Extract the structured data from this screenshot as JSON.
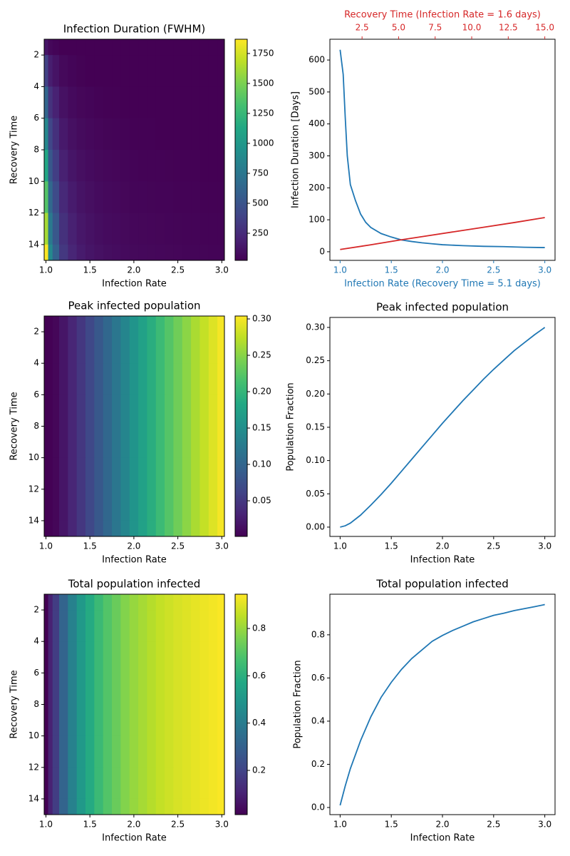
{
  "chart_data": [
    {
      "type": "heatmap",
      "title": "Infection Duration (FWHM)",
      "xlabel": "Infection Rate",
      "ylabel": "Recovery Time",
      "colormap": "viridis",
      "x": [
        1.0,
        1.05,
        1.1,
        1.2,
        1.3,
        1.4,
        1.5,
        1.6,
        1.7,
        1.8,
        1.9,
        2.0,
        2.1,
        2.2,
        2.3,
        2.4,
        2.5,
        2.6,
        2.7,
        2.8,
        2.9,
        3.0
      ],
      "y": [
        1,
        3,
        5,
        7,
        9,
        11,
        13,
        15
      ],
      "values": [
        [
          125,
          59,
          40,
          22,
          15,
          11,
          9,
          7,
          6,
          6,
          5,
          4,
          4,
          4,
          4,
          4,
          3,
          3,
          3,
          3,
          3,
          3
        ],
        [
          374,
          177,
          120,
          65,
          44,
          32,
          26,
          21,
          18,
          17,
          15,
          13,
          12,
          12,
          11,
          11,
          10,
          9,
          9,
          9,
          8,
          8
        ],
        [
          623,
          295,
          200,
          108,
          74,
          54,
          44,
          36,
          31,
          28,
          25,
          22,
          21,
          20,
          19,
          18,
          17,
          16,
          15,
          14,
          14,
          13
        ],
        [
          872,
          413,
          280,
          151,
          103,
          76,
          62,
          50,
          43,
          39,
          34,
          30,
          29,
          27,
          26,
          25,
          23,
          22,
          21,
          20,
          19,
          18
        ],
        [
          1121,
          531,
          360,
          194,
          132,
          97,
          79,
          64,
          55,
          50,
          44,
          39,
          37,
          35,
          33,
          32,
          30,
          28,
          27,
          26,
          24,
          23
        ],
        [
          1370,
          649,
          440,
          238,
          162,
          119,
          97,
          78,
          67,
          61,
          54,
          47,
          45,
          43,
          41,
          39,
          36,
          34,
          33,
          31,
          30,
          28
        ],
        [
          1620,
          767,
          520,
          281,
          191,
          140,
          114,
          92,
          79,
          72,
          64,
          56,
          53,
          51,
          48,
          46,
          43,
          40,
          39,
          37,
          35,
          33
        ],
        [
          1869,
          885,
          600,
          324,
          221,
          162,
          132,
          107,
          92,
          83,
          74,
          65,
          62,
          59,
          56,
          53,
          50,
          47,
          45,
          43,
          41,
          38
        ]
      ],
      "xlim": [
        0.98,
        3.03
      ],
      "xticks": [
        {
          "value": 1,
          "label": "1.0"
        },
        1.5,
        {
          "value": 2,
          "label": "2.0"
        },
        2.5,
        {
          "value": 3,
          "label": "3.0"
        }
      ],
      "ylim": [
        15,
        1
      ],
      "yticks": [
        2,
        4,
        6,
        8,
        10,
        12,
        14
      ],
      "clim": [
        24,
        1869
      ],
      "cticks": [
        250,
        500,
        750,
        1000,
        1250,
        1500,
        1750
      ]
    },
    {
      "type": "line",
      "xlabel": "Infection Rate (Recovery Time = 5.1 days)",
      "ylabel": "Infection Duration [Days]",
      "x2label": "Recovery Time (Infection Rate = 1.6 days)",
      "xaxis_color": "#1f77b4",
      "x2axis_color": "#d62728",
      "xlim": [
        0.9,
        3.1
      ],
      "xticks": [
        {
          "value": 1,
          "label": "1.0"
        },
        1.5,
        {
          "value": 2,
          "label": "2.0"
        },
        2.5,
        {
          "value": 3,
          "label": "3.0"
        }
      ],
      "x2lim": [
        0.3,
        15.7
      ],
      "x2ticks": [
        2.5,
        {
          "value": 5,
          "label": "5.0"
        },
        7.5,
        {
          "value": 10,
          "label": "10.0"
        },
        12.5,
        {
          "value": 15,
          "label": "15.0"
        }
      ],
      "ylim": [
        -27,
        665
      ],
      "yticks": [
        0,
        100,
        200,
        300,
        400,
        500,
        600
      ],
      "series": [
        {
          "color": "#1f77b4",
          "x": [
            1.0,
            1.03,
            1.05,
            1.07,
            1.1,
            1.15,
            1.2,
            1.25,
            1.3,
            1.4,
            1.5,
            1.6,
            1.7,
            1.8,
            1.9,
            2.0,
            2.2,
            2.4,
            2.6,
            2.8,
            3.0
          ],
          "values": [
            632,
            555,
            420,
            300,
            210,
            160,
            118,
            92,
            76,
            57,
            46,
            37,
            32,
            28,
            25,
            22,
            19,
            17,
            16,
            14,
            13
          ]
        },
        {
          "color": "#d62728",
          "axis": "x2",
          "x": [
            1,
            3,
            5,
            7,
            9,
            11,
            13,
            15
          ],
          "values": [
            7,
            21,
            36,
            50,
            64,
            78,
            92,
            107
          ]
        }
      ]
    },
    {
      "type": "heatmap",
      "title": "Peak infected population",
      "xlabel": "Infection Rate",
      "ylabel": "Recovery Time",
      "colormap": "viridis",
      "x": [
        1.0,
        1.05,
        1.1,
        1.2,
        1.3,
        1.4,
        1.5,
        1.6,
        1.7,
        1.8,
        1.9,
        2.0,
        2.1,
        2.2,
        2.3,
        2.4,
        2.5,
        2.6,
        2.7,
        2.8,
        2.9,
        3.0
      ],
      "y": [
        1,
        3,
        5,
        7,
        9,
        11,
        13,
        15
      ],
      "values": [
        [
          0,
          0.002,
          0.006,
          0.018,
          0.033,
          0.049,
          0.066,
          0.084,
          0.102,
          0.12,
          0.138,
          0.156,
          0.173,
          0.19,
          0.206,
          0.222,
          0.237,
          0.251,
          0.265,
          0.277,
          0.289,
          0.3
        ],
        [
          0,
          0.002,
          0.006,
          0.018,
          0.033,
          0.049,
          0.066,
          0.084,
          0.102,
          0.12,
          0.138,
          0.156,
          0.173,
          0.19,
          0.206,
          0.222,
          0.237,
          0.251,
          0.265,
          0.277,
          0.289,
          0.3
        ],
        [
          0,
          0.002,
          0.006,
          0.018,
          0.033,
          0.049,
          0.066,
          0.084,
          0.102,
          0.12,
          0.138,
          0.156,
          0.173,
          0.19,
          0.206,
          0.222,
          0.237,
          0.251,
          0.265,
          0.277,
          0.289,
          0.3
        ],
        [
          0,
          0.002,
          0.006,
          0.018,
          0.033,
          0.049,
          0.066,
          0.084,
          0.102,
          0.12,
          0.138,
          0.156,
          0.173,
          0.19,
          0.206,
          0.222,
          0.237,
          0.251,
          0.265,
          0.277,
          0.289,
          0.3
        ],
        [
          0,
          0.002,
          0.006,
          0.018,
          0.033,
          0.049,
          0.066,
          0.084,
          0.102,
          0.12,
          0.138,
          0.156,
          0.173,
          0.19,
          0.206,
          0.222,
          0.237,
          0.251,
          0.265,
          0.277,
          0.289,
          0.3
        ],
        [
          0,
          0.002,
          0.006,
          0.018,
          0.033,
          0.049,
          0.066,
          0.084,
          0.102,
          0.12,
          0.138,
          0.156,
          0.173,
          0.19,
          0.206,
          0.222,
          0.237,
          0.251,
          0.265,
          0.277,
          0.289,
          0.3
        ],
        [
          0,
          0.002,
          0.006,
          0.018,
          0.033,
          0.049,
          0.066,
          0.084,
          0.102,
          0.12,
          0.138,
          0.156,
          0.173,
          0.19,
          0.206,
          0.222,
          0.237,
          0.251,
          0.265,
          0.277,
          0.289,
          0.3
        ],
        [
          0,
          0.002,
          0.006,
          0.018,
          0.033,
          0.049,
          0.066,
          0.084,
          0.102,
          0.12,
          0.138,
          0.156,
          0.173,
          0.19,
          0.206,
          0.222,
          0.237,
          0.251,
          0.265,
          0.277,
          0.289,
          0.3
        ]
      ],
      "xlim": [
        0.98,
        3.03
      ],
      "xticks": [
        {
          "value": 1,
          "label": "1.0"
        },
        1.5,
        {
          "value": 2,
          "label": "2.0"
        },
        2.5,
        {
          "value": 3,
          "label": "3.0"
        }
      ],
      "ylim": [
        15,
        1
      ],
      "yticks": [
        2,
        4,
        6,
        8,
        10,
        12,
        14
      ],
      "clim": [
        0.001,
        0.304
      ],
      "cticks": [
        0.05,
        {
          "value": 0.1,
          "label": "0.10"
        },
        0.15,
        {
          "value": 0.2,
          "label": "0.20"
        },
        0.25,
        {
          "value": 0.3,
          "label": "0.30"
        }
      ]
    },
    {
      "type": "line",
      "title": "Peak infected population",
      "xlabel": "Infection Rate",
      "ylabel": "Population Fraction",
      "xlim": [
        0.9,
        3.1
      ],
      "xticks": [
        {
          "value": 1,
          "label": "1.0"
        },
        1.5,
        {
          "value": 2,
          "label": "2.0"
        },
        2.5,
        {
          "value": 3,
          "label": "3.0"
        }
      ],
      "ylim": [
        -0.014,
        0.315
      ],
      "yticks": [
        {
          "value": 0,
          "label": "0.00"
        },
        0.05,
        {
          "value": 0.1,
          "label": "0.10"
        },
        0.15,
        {
          "value": 0.2,
          "label": "0.20"
        },
        0.25,
        {
          "value": 0.3,
          "label": "0.30"
        }
      ],
      "series": [
        {
          "color": "#1f77b4",
          "x": [
            1.0,
            1.05,
            1.1,
            1.2,
            1.3,
            1.4,
            1.5,
            1.6,
            1.7,
            1.8,
            1.9,
            2.0,
            2.1,
            2.2,
            2.3,
            2.4,
            2.5,
            2.6,
            2.7,
            2.8,
            2.9,
            3.0
          ],
          "values": [
            0,
            0.002,
            0.006,
            0.018,
            0.033,
            0.049,
            0.066,
            0.084,
            0.102,
            0.12,
            0.138,
            0.156,
            0.173,
            0.19,
            0.206,
            0.222,
            0.237,
            0.251,
            0.265,
            0.277,
            0.289,
            0.3
          ]
        }
      ]
    },
    {
      "type": "heatmap",
      "title": "Total population infected",
      "xlabel": "Infection Rate",
      "ylabel": "Recovery Time",
      "colormap": "viridis",
      "x": [
        1.0,
        1.05,
        1.1,
        1.2,
        1.3,
        1.4,
        1.5,
        1.6,
        1.7,
        1.8,
        1.9,
        2.0,
        2.1,
        2.2,
        2.3,
        2.4,
        2.5,
        2.6,
        2.7,
        2.8,
        2.9,
        3.0
      ],
      "y": [
        1,
        3,
        5,
        7,
        9,
        11,
        13,
        15
      ],
      "values": [
        [
          0.01,
          0.1,
          0.18,
          0.31,
          0.42,
          0.51,
          0.58,
          0.64,
          0.69,
          0.73,
          0.77,
          0.797,
          0.82,
          0.84,
          0.86,
          0.875,
          0.89,
          0.9,
          0.912,
          0.921,
          0.93,
          0.94
        ],
        [
          0.01,
          0.1,
          0.18,
          0.31,
          0.42,
          0.51,
          0.58,
          0.64,
          0.69,
          0.73,
          0.77,
          0.797,
          0.82,
          0.84,
          0.86,
          0.875,
          0.89,
          0.9,
          0.912,
          0.921,
          0.93,
          0.94
        ],
        [
          0.01,
          0.1,
          0.18,
          0.31,
          0.42,
          0.51,
          0.58,
          0.64,
          0.69,
          0.73,
          0.77,
          0.797,
          0.82,
          0.84,
          0.86,
          0.875,
          0.89,
          0.9,
          0.912,
          0.921,
          0.93,
          0.94
        ],
        [
          0.01,
          0.1,
          0.18,
          0.31,
          0.42,
          0.51,
          0.58,
          0.64,
          0.69,
          0.73,
          0.77,
          0.797,
          0.82,
          0.84,
          0.86,
          0.875,
          0.89,
          0.9,
          0.912,
          0.921,
          0.93,
          0.94
        ],
        [
          0.01,
          0.1,
          0.18,
          0.31,
          0.42,
          0.51,
          0.58,
          0.64,
          0.69,
          0.73,
          0.77,
          0.797,
          0.82,
          0.84,
          0.86,
          0.875,
          0.89,
          0.9,
          0.912,
          0.921,
          0.93,
          0.94
        ],
        [
          0.01,
          0.1,
          0.18,
          0.31,
          0.42,
          0.51,
          0.58,
          0.64,
          0.69,
          0.73,
          0.77,
          0.797,
          0.82,
          0.84,
          0.86,
          0.875,
          0.89,
          0.9,
          0.912,
          0.921,
          0.93,
          0.94
        ],
        [
          0.01,
          0.1,
          0.18,
          0.31,
          0.42,
          0.51,
          0.58,
          0.64,
          0.69,
          0.73,
          0.77,
          0.797,
          0.82,
          0.84,
          0.86,
          0.875,
          0.89,
          0.9,
          0.912,
          0.921,
          0.93,
          0.94
        ],
        [
          0.01,
          0.1,
          0.18,
          0.31,
          0.42,
          0.51,
          0.58,
          0.64,
          0.69,
          0.73,
          0.77,
          0.797,
          0.82,
          0.84,
          0.86,
          0.875,
          0.89,
          0.9,
          0.912,
          0.921,
          0.93,
          0.94
        ]
      ],
      "xlim": [
        0.98,
        3.03
      ],
      "xticks": [
        {
          "value": 1,
          "label": "1.0"
        },
        1.5,
        {
          "value": 2,
          "label": "2.0"
        },
        2.5,
        {
          "value": 3,
          "label": "3.0"
        }
      ],
      "ylim": [
        15,
        1
      ],
      "yticks": [
        2,
        4,
        6,
        8,
        10,
        12,
        14
      ],
      "clim": [
        0.013,
        0.945
      ],
      "cticks": [
        0.2,
        0.4,
        0.6,
        0.8
      ]
    },
    {
      "type": "line",
      "title": "Total population infected",
      "xlabel": "Infection Rate",
      "ylabel": "Population Fraction",
      "xlim": [
        0.9,
        3.1
      ],
      "xticks": [
        {
          "value": 1,
          "label": "1.0"
        },
        1.5,
        {
          "value": 2,
          "label": "2.0"
        },
        2.5,
        {
          "value": 3,
          "label": "3.0"
        }
      ],
      "ylim": [
        -0.033,
        0.988
      ],
      "yticks": [
        {
          "value": 0,
          "label": "0.0"
        },
        0.2,
        0.4,
        0.6,
        0.8
      ],
      "series": [
        {
          "color": "#1f77b4",
          "x": [
            1.0,
            1.05,
            1.1,
            1.2,
            1.3,
            1.4,
            1.5,
            1.6,
            1.7,
            1.8,
            1.9,
            2.0,
            2.1,
            2.2,
            2.3,
            2.4,
            2.5,
            2.6,
            2.7,
            2.8,
            2.9,
            3.0
          ],
          "values": [
            0.01,
            0.1,
            0.18,
            0.31,
            0.42,
            0.51,
            0.58,
            0.64,
            0.69,
            0.73,
            0.77,
            0.797,
            0.82,
            0.84,
            0.86,
            0.875,
            0.89,
            0.9,
            0.912,
            0.921,
            0.93,
            0.94
          ]
        }
      ]
    }
  ]
}
